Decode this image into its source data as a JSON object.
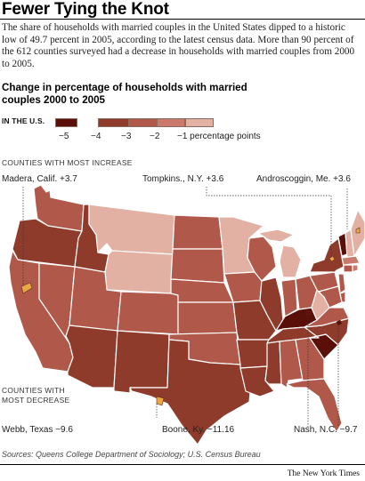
{
  "headline": "Fewer Tying the Knot",
  "intro": "The share of households with married couples in the United States dipped to a historic low of 49.7 percent in 2005, according to the latest census data. More than 90 percent of the 612 counties surveyed had a decrease in households with married couples from 2000 to 2005.",
  "subtitle": "Change in percentage of households with married couples 2000 to 2005",
  "legend": {
    "region_label": "IN THE U.S.",
    "ticks": [
      "−5",
      "−4",
      "−3",
      "−2",
      "−1 percentage points"
    ],
    "colors": [
      "#5a0f08",
      "#8e3b2c",
      "#b0584a",
      "#c97a6d",
      "#e3b0a4"
    ]
  },
  "increase": {
    "heading": "COUNTIES WITH MOST INCREASE",
    "madera": "Madera, Calif. +3.7",
    "tompkins": "Tompkins., N.Y. +3.6",
    "androscoggin": "Androscoggin, Me. +3.6"
  },
  "decrease": {
    "heading_line1": "COUNTIES WITH",
    "heading_line2": "MOST DECREASE",
    "webb": "Webb, Texas −9.6",
    "boone": "Boone, Ky. −11.16",
    "nash": "Nash, N.C. −9.7"
  },
  "source": "Sources: Queens College Department of Sociology; U.S. Census Bureau",
  "credit": "The New York Times",
  "map_colors": {
    "lightest": "#e3b0a4",
    "light": "#c97a6d",
    "mid": "#b0584a",
    "dark": "#8e3b2c",
    "darkest": "#5a0f08",
    "orange": "#e8a845",
    "border": "#ffffff"
  }
}
